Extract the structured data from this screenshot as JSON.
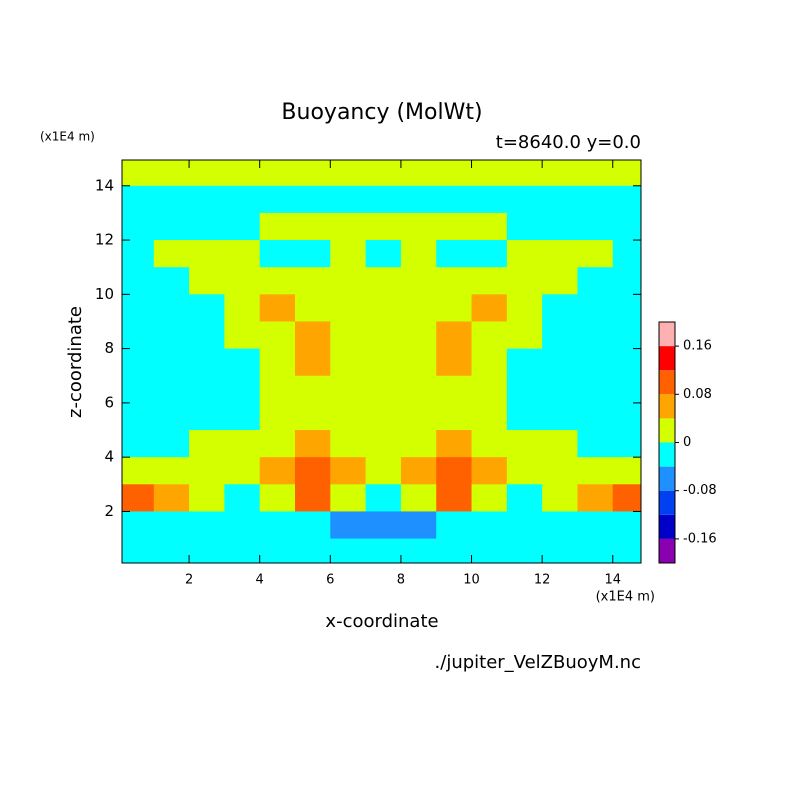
{
  "chart_data": {
    "type": "contour",
    "title": "Buoyancy (MolWt)",
    "subtitle": "t=8640.0 y=0.0",
    "x_unit": "(x1E4 m)",
    "y_unit": "(x1E4 m)",
    "x_label": "x-coordinate",
    "y_label": "z-coordinate",
    "footnote": "./jupiter_VelZBuoyM.nc",
    "xlim": [
      0.1,
      14.8
    ],
    "ylim": [
      0.1,
      14.95
    ],
    "xticks": [
      2,
      4,
      6,
      8,
      10,
      12,
      14
    ],
    "yticks": [
      2,
      4,
      6,
      8,
      10,
      12,
      14
    ],
    "x": [
      0.5,
      1.5,
      2.5,
      3.5,
      4.5,
      5.5,
      6.5,
      7.5,
      8.5,
      9.5,
      10.5,
      11.5,
      12.5,
      13.5,
      14.5
    ],
    "z": [
      14.5,
      13.5,
      12.5,
      11.5,
      10.5,
      9.5,
      8.5,
      7.5,
      6.5,
      5.5,
      4.5,
      3.5,
      2.5,
      1.5,
      0.5
    ],
    "values": [
      [
        0.02,
        0.02,
        0.02,
        0.02,
        0.02,
        0.02,
        0.02,
        0.02,
        0.02,
        0.02,
        0.02,
        0.02,
        0.02,
        0.02,
        0.02
      ],
      [
        -0.02,
        -0.02,
        -0.02,
        -0.02,
        -0.02,
        -0.02,
        -0.02,
        -0.02,
        -0.02,
        -0.02,
        -0.02,
        -0.02,
        -0.02,
        -0.02,
        -0.02
      ],
      [
        -0.02,
        -0.02,
        -0.02,
        -0.02,
        0.02,
        0.02,
        0.02,
        0.02,
        0.02,
        0.02,
        0.02,
        -0.02,
        -0.02,
        -0.02,
        -0.02
      ],
      [
        -0.02,
        0.02,
        0.02,
        0.02,
        -0.02,
        -0.02,
        0.02,
        -0.02,
        0.02,
        -0.02,
        -0.02,
        0.02,
        0.02,
        0.02,
        -0.02
      ],
      [
        -0.02,
        -0.02,
        0.02,
        0.02,
        0.02,
        0.02,
        0.02,
        0.02,
        0.02,
        0.02,
        0.02,
        0.02,
        0.02,
        -0.02,
        -0.02
      ],
      [
        -0.02,
        -0.02,
        -0.02,
        0.02,
        0.06,
        0.02,
        0.02,
        0.02,
        0.02,
        0.02,
        0.06,
        0.02,
        -0.02,
        -0.02,
        -0.02
      ],
      [
        -0.02,
        -0.02,
        -0.02,
        0.02,
        0.02,
        0.06,
        0.02,
        0.02,
        0.02,
        0.06,
        0.02,
        0.02,
        -0.02,
        -0.02,
        -0.02
      ],
      [
        -0.02,
        -0.02,
        -0.02,
        -0.02,
        0.02,
        0.06,
        0.02,
        0.02,
        0.02,
        0.06,
        0.02,
        -0.02,
        -0.02,
        -0.02,
        -0.02
      ],
      [
        -0.02,
        -0.02,
        -0.02,
        -0.02,
        0.02,
        0.02,
        0.02,
        0.02,
        0.02,
        0.02,
        0.02,
        -0.02,
        -0.02,
        -0.02,
        -0.02
      ],
      [
        -0.02,
        -0.02,
        -0.02,
        -0.02,
        0.02,
        0.02,
        0.02,
        0.02,
        0.02,
        0.02,
        0.02,
        -0.02,
        -0.02,
        -0.02,
        -0.02
      ],
      [
        -0.02,
        -0.02,
        0.02,
        0.02,
        0.02,
        0.06,
        0.02,
        0.02,
        0.02,
        0.06,
        0.02,
        0.02,
        0.02,
        -0.02,
        -0.02
      ],
      [
        0.02,
        0.02,
        0.02,
        0.02,
        0.06,
        0.1,
        0.06,
        0.02,
        0.06,
        0.1,
        0.06,
        0.02,
        0.02,
        0.02,
        0.02
      ],
      [
        0.1,
        0.06,
        0.02,
        -0.02,
        0.02,
        0.1,
        0.02,
        -0.02,
        0.02,
        0.1,
        0.02,
        -0.02,
        0.02,
        0.06,
        0.1
      ],
      [
        -0.02,
        -0.02,
        -0.02,
        -0.02,
        -0.02,
        -0.02,
        -0.06,
        -0.06,
        -0.06,
        -0.02,
        -0.02,
        -0.02,
        -0.02,
        -0.02,
        -0.02
      ],
      [
        -0.02,
        -0.02,
        -0.02,
        -0.02,
        -0.02,
        -0.02,
        -0.02,
        -0.02,
        -0.02,
        -0.02,
        -0.02,
        -0.02,
        -0.02,
        -0.02,
        -0.02
      ]
    ],
    "levels": [
      -0.2,
      -0.16,
      -0.12,
      -0.08,
      -0.04,
      0,
      0.04,
      0.08,
      0.12,
      0.16,
      0.2
    ],
    "colors": [
      "#8a00b0",
      "#0000c8",
      "#0040f0",
      "#1e90ff",
      "#00ffff",
      "#d4ff00",
      "#ffa500",
      "#ff6000",
      "#ff0000",
      "#ffb0b0"
    ],
    "colorbar_ticks": [
      0.16,
      0.08,
      0,
      -0.08,
      -0.16
    ]
  }
}
